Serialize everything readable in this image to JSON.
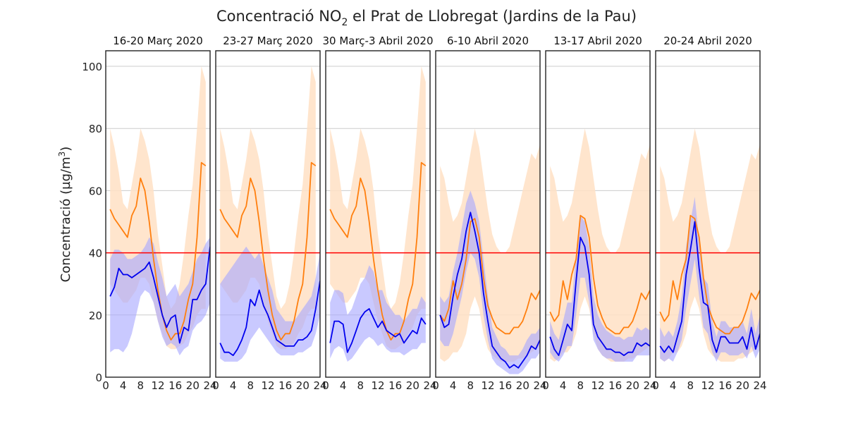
{
  "chart_data": {
    "type": "line",
    "title_prefix": "Concentració NO",
    "title_sub": "2",
    "title_suffix": " el Prat de Llobregat (Jardins de la Pau)",
    "ylabel_prefix": "Concentració (µg/m",
    "ylabel_sup": "3",
    "ylabel_suffix": ")",
    "ylim": [
      0,
      105
    ],
    "xlim": [
      0,
      24
    ],
    "yticks": [
      0,
      20,
      40,
      60,
      80,
      100
    ],
    "xticks": [
      0,
      4,
      8,
      12,
      16,
      20,
      24
    ],
    "grid": "horizontal",
    "limit_value": 40,
    "colors": {
      "orange_line": "#ff7f0e",
      "orange_band": "#ffe0c4",
      "blue_line": "#0000ee",
      "blue_band": "#a8a8ff",
      "limit_line": "#ff0000"
    },
    "hours": [
      1,
      2,
      3,
      4,
      5,
      6,
      7,
      8,
      9,
      10,
      11,
      12,
      13,
      14,
      15,
      16,
      17,
      18,
      19,
      20,
      21,
      22,
      23,
      24
    ],
    "panels": [
      {
        "title": "16-20 Març 2020",
        "orange": [
          54,
          51,
          49,
          47,
          45,
          52,
          55,
          64,
          60,
          50,
          38,
          28,
          20,
          15,
          12,
          14,
          14,
          18,
          25,
          30,
          45,
          69,
          68,
          null
        ],
        "orange_lo": [
          30,
          28,
          26,
          24,
          24,
          26,
          28,
          32,
          32,
          30,
          24,
          18,
          14,
          10,
          9,
          9,
          10,
          11,
          14,
          16,
          20,
          22,
          22,
          null
        ],
        "orange_hi": [
          80,
          74,
          66,
          56,
          54,
          62,
          70,
          80,
          76,
          70,
          60,
          46,
          36,
          26,
          22,
          24,
          30,
          40,
          52,
          62,
          80,
          100,
          95,
          null
        ],
        "blue": [
          26,
          29,
          35,
          33,
          33,
          32,
          33,
          34,
          35,
          37,
          32,
          26,
          20,
          16,
          19,
          20,
          11,
          16,
          15,
          25,
          25,
          28,
          30,
          42
        ],
        "blue_lo": [
          8,
          9,
          9,
          8,
          10,
          14,
          20,
          26,
          28,
          27,
          24,
          18,
          13,
          10,
          11,
          10,
          7,
          9,
          10,
          15,
          17,
          18,
          20,
          24
        ],
        "blue_hi": [
          38,
          41,
          41,
          40,
          38,
          38,
          39,
          40,
          42,
          45,
          43,
          37,
          32,
          26,
          28,
          30,
          26,
          28,
          30,
          34,
          38,
          40,
          43,
          45
        ]
      },
      {
        "title": "23-27 Març 2020",
        "orange": [
          54,
          51,
          49,
          47,
          45,
          52,
          55,
          64,
          60,
          50,
          38,
          28,
          20,
          15,
          12,
          14,
          14,
          18,
          25,
          30,
          45,
          69,
          68,
          null
        ],
        "orange_lo": [
          30,
          28,
          26,
          24,
          24,
          26,
          28,
          32,
          32,
          30,
          24,
          18,
          14,
          10,
          9,
          9,
          10,
          11,
          14,
          16,
          20,
          22,
          22,
          null
        ],
        "orange_hi": [
          80,
          74,
          66,
          56,
          54,
          62,
          70,
          80,
          76,
          70,
          60,
          46,
          36,
          26,
          22,
          24,
          30,
          40,
          52,
          62,
          80,
          100,
          95,
          null
        ],
        "blue": [
          11,
          8,
          8,
          7,
          9,
          12,
          16,
          25,
          23,
          28,
          23,
          20,
          16,
          12,
          11,
          10,
          10,
          10,
          12,
          12,
          13,
          15,
          22,
          31
        ],
        "blue_lo": [
          6,
          5,
          5,
          5,
          5,
          6,
          8,
          12,
          14,
          16,
          14,
          12,
          10,
          8,
          7,
          7,
          7,
          7,
          8,
          8,
          9,
          10,
          14,
          20
        ],
        "blue_hi": [
          30,
          32,
          34,
          36,
          38,
          40,
          42,
          40,
          38,
          40,
          36,
          32,
          28,
          22,
          20,
          18,
          18,
          18,
          20,
          22,
          24,
          26,
          32,
          40
        ]
      },
      {
        "title": "30 Març-3 Abril 2020",
        "orange": [
          54,
          51,
          49,
          47,
          45,
          52,
          55,
          64,
          60,
          50,
          38,
          28,
          20,
          15,
          12,
          14,
          14,
          18,
          25,
          30,
          45,
          69,
          68,
          null
        ],
        "orange_lo": [
          30,
          28,
          26,
          24,
          24,
          26,
          28,
          32,
          32,
          30,
          24,
          18,
          14,
          10,
          9,
          9,
          10,
          11,
          14,
          16,
          20,
          22,
          22,
          null
        ],
        "orange_hi": [
          80,
          74,
          66,
          56,
          54,
          62,
          70,
          80,
          76,
          70,
          60,
          46,
          36,
          26,
          22,
          24,
          30,
          40,
          52,
          62,
          80,
          100,
          95,
          null
        ],
        "blue": [
          11,
          18,
          18,
          17,
          8,
          11,
          15,
          19,
          21,
          22,
          19,
          16,
          18,
          15,
          14,
          13,
          14,
          11,
          13,
          15,
          14,
          19,
          17,
          null
        ],
        "blue_lo": [
          6,
          9,
          10,
          9,
          5,
          6,
          8,
          10,
          12,
          13,
          12,
          10,
          11,
          9,
          8,
          8,
          8,
          7,
          8,
          9,
          9,
          11,
          11,
          null
        ],
        "blue_hi": [
          24,
          28,
          28,
          27,
          20,
          22,
          26,
          30,
          32,
          36,
          34,
          28,
          28,
          24,
          22,
          20,
          20,
          18,
          20,
          22,
          22,
          26,
          24,
          null
        ]
      },
      {
        "title": "6-10 Abril 2020",
        "orange": [
          20,
          18,
          22,
          31,
          25,
          30,
          38,
          50,
          51,
          45,
          32,
          23,
          19,
          16,
          15,
          14,
          14,
          16,
          16,
          18,
          22,
          27,
          25,
          28
        ],
        "orange_lo": [
          6,
          5,
          6,
          8,
          8,
          10,
          14,
          22,
          26,
          22,
          14,
          9,
          7,
          6,
          5,
          5,
          5,
          5,
          6,
          6,
          7,
          8,
          9,
          10
        ],
        "orange_hi": [
          68,
          64,
          56,
          50,
          52,
          56,
          64,
          72,
          80,
          74,
          64,
          54,
          46,
          42,
          40,
          40,
          42,
          48,
          54,
          60,
          66,
          72,
          70,
          75
        ],
        "blue": [
          20,
          16,
          17,
          26,
          33,
          38,
          47,
          53,
          47,
          40,
          27,
          18,
          10,
          8,
          6,
          5,
          3,
          4,
          3,
          5,
          7,
          10,
          9,
          12
        ],
        "blue_lo": [
          12,
          10,
          10,
          14,
          20,
          26,
          34,
          40,
          38,
          32,
          20,
          12,
          6,
          4,
          3,
          2,
          1,
          1,
          1,
          2,
          4,
          6,
          6,
          8
        ],
        "blue_hi": [
          26,
          24,
          26,
          34,
          40,
          48,
          56,
          60,
          56,
          50,
          38,
          26,
          16,
          13,
          10,
          9,
          7,
          7,
          7,
          9,
          12,
          14,
          14,
          16
        ]
      },
      {
        "title": "13-17 Abril 2020",
        "orange": [
          21,
          18,
          20,
          31,
          25,
          33,
          38,
          52,
          51,
          45,
          32,
          23,
          19,
          16,
          15,
          14,
          14,
          16,
          16,
          18,
          22,
          27,
          25,
          28
        ],
        "orange_lo": [
          6,
          5,
          6,
          8,
          8,
          10,
          14,
          22,
          26,
          22,
          14,
          9,
          7,
          6,
          5,
          5,
          5,
          5,
          6,
          6,
          7,
          8,
          9,
          10
        ],
        "orange_hi": [
          68,
          64,
          56,
          50,
          52,
          56,
          64,
          72,
          80,
          74,
          64,
          54,
          46,
          42,
          40,
          40,
          42,
          48,
          54,
          60,
          66,
          72,
          70,
          75
        ],
        "blue": [
          13,
          9,
          7,
          12,
          17,
          15,
          31,
          45,
          42,
          33,
          17,
          13,
          11,
          9,
          9,
          8,
          8,
          7,
          8,
          8,
          11,
          10,
          11,
          10
        ],
        "blue_lo": [
          8,
          6,
          5,
          7,
          10,
          10,
          20,
          32,
          32,
          24,
          12,
          9,
          7,
          6,
          6,
          5,
          5,
          5,
          5,
          5,
          7,
          7,
          7,
          7
        ],
        "blue_hi": [
          18,
          14,
          12,
          18,
          24,
          24,
          40,
          52,
          50,
          42,
          26,
          20,
          17,
          15,
          14,
          13,
          13,
          12,
          13,
          13,
          16,
          15,
          16,
          15
        ]
      },
      {
        "title": "20-24 Abril 2020",
        "orange": [
          21,
          18,
          20,
          31,
          25,
          33,
          38,
          52,
          51,
          45,
          32,
          23,
          19,
          16,
          15,
          14,
          14,
          16,
          16,
          18,
          22,
          27,
          25,
          28
        ],
        "orange_lo": [
          6,
          5,
          6,
          8,
          8,
          10,
          14,
          22,
          26,
          22,
          14,
          9,
          7,
          6,
          5,
          5,
          5,
          5,
          6,
          6,
          7,
          8,
          9,
          10
        ],
        "orange_hi": [
          68,
          64,
          56,
          50,
          52,
          56,
          64,
          72,
          80,
          74,
          64,
          54,
          46,
          42,
          40,
          40,
          42,
          48,
          54,
          60,
          66,
          72,
          70,
          75
        ],
        "blue": [
          10,
          8,
          10,
          8,
          13,
          18,
          33,
          41,
          50,
          35,
          24,
          23,
          12,
          8,
          13,
          13,
          11,
          11,
          11,
          13,
          9,
          16,
          9,
          14
        ],
        "blue_lo": [
          6,
          5,
          6,
          5,
          8,
          12,
          22,
          30,
          38,
          26,
          16,
          14,
          8,
          5,
          8,
          8,
          7,
          7,
          7,
          8,
          6,
          10,
          6,
          9
        ],
        "blue_hi": [
          16,
          13,
          15,
          13,
          18,
          26,
          42,
          50,
          58,
          44,
          32,
          30,
          18,
          13,
          18,
          18,
          16,
          16,
          16,
          18,
          14,
          22,
          14,
          20
        ]
      }
    ]
  }
}
